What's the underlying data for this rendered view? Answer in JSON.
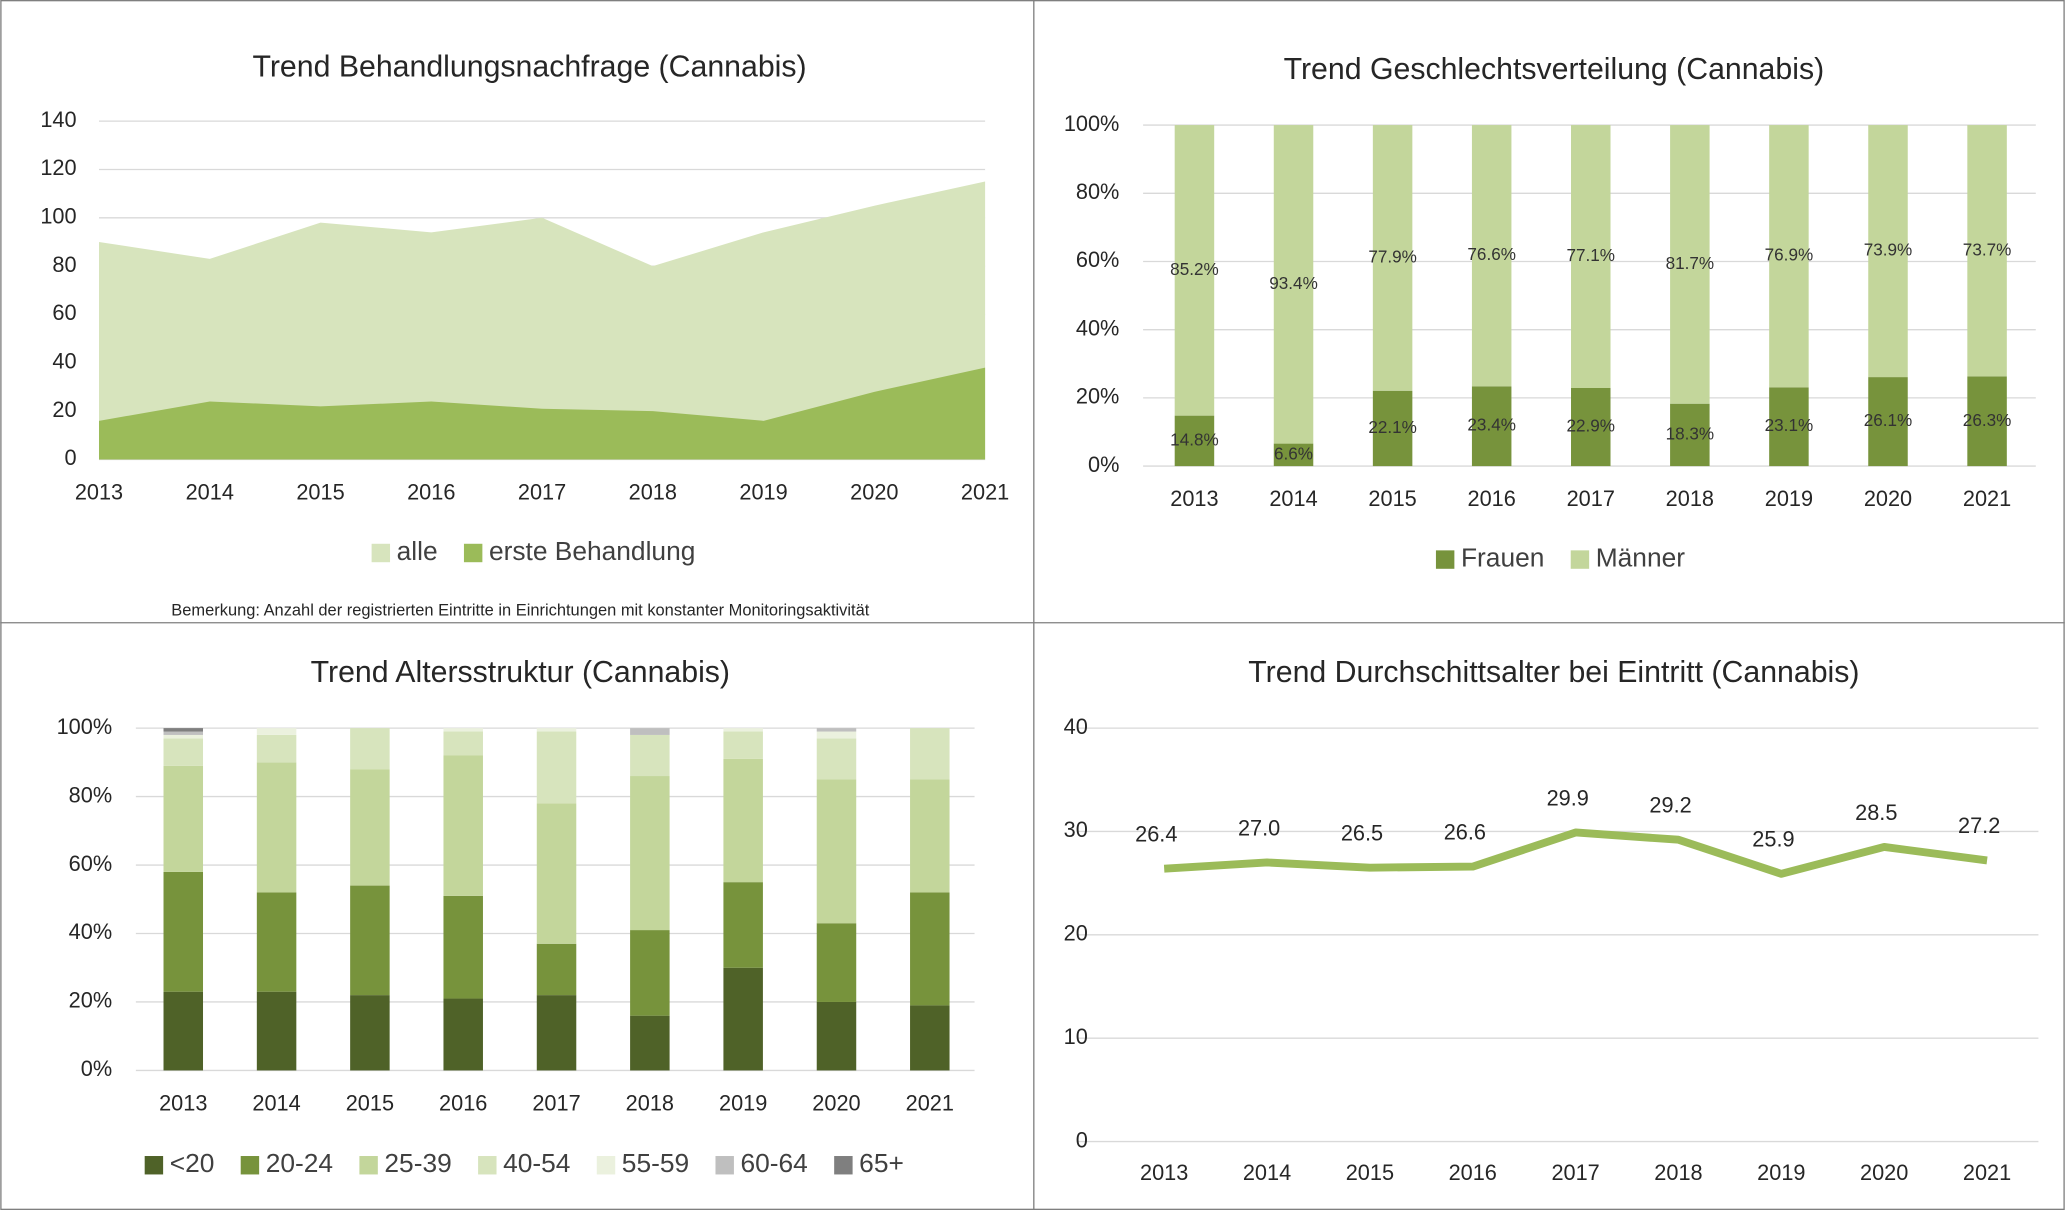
{
  "chart_data": [
    {
      "type": "area",
      "title": "Trend Behandlungsnachfrage (Cannabis)",
      "note": "Bemerkung: Anzahl der registrierten Eintritte in Einrichtungen mit konstanter Monitoringsaktivität",
      "categories": [
        "2013",
        "2014",
        "2015",
        "2016",
        "2017",
        "2018",
        "2019",
        "2020",
        "2021"
      ],
      "series": [
        {
          "name": "alle",
          "color": "#d7e4bd",
          "values": [
            90,
            83,
            98,
            94,
            100,
            80,
            94,
            105,
            115
          ]
        },
        {
          "name": "erste Behandlung",
          "color": "#9bbb59",
          "values": [
            16,
            24,
            22,
            24,
            21,
            20,
            16,
            28,
            38
          ]
        }
      ],
      "ylim": [
        0,
        140
      ],
      "yticks": [
        0,
        20,
        40,
        60,
        80,
        100,
        120,
        140
      ],
      "grid": true,
      "legend": "bottom"
    },
    {
      "type": "stacked_bar",
      "title": "Trend Geschlechtsverteilung (Cannabis)",
      "categories": [
        "2013",
        "2014",
        "2015",
        "2016",
        "2017",
        "2018",
        "2019",
        "2020",
        "2021"
      ],
      "series": [
        {
          "name": "Frauen",
          "color": "#77933c",
          "values": [
            14.8,
            6.6,
            22.1,
            23.4,
            22.9,
            18.3,
            23.1,
            26.1,
            26.3
          ],
          "value_labels": [
            "14.8%",
            "6.6%",
            "22.1%",
            "23.4%",
            "22.9%",
            "18.3%",
            "23.1%",
            "26.1%",
            "26.3%"
          ]
        },
        {
          "name": "Männer",
          "color": "#c3d69b",
          "values": [
            85.2,
            93.4,
            77.9,
            76.6,
            77.1,
            81.7,
            76.9,
            73.9,
            73.7
          ],
          "value_labels": [
            "85.2%",
            "93.4%",
            "77.9%",
            "76.6%",
            "77.1%",
            "81.7%",
            "76.9%",
            "73.9%",
            "73.7%"
          ]
        }
      ],
      "ylim": [
        0,
        100
      ],
      "yticks": [
        {
          "value": 0,
          "label": "0%"
        },
        {
          "value": 20,
          "label": "20%"
        },
        {
          "value": 40,
          "label": "40%"
        },
        {
          "value": 60,
          "label": "60%"
        },
        {
          "value": 80,
          "label": "80%"
        },
        {
          "value": 100,
          "label": "100%"
        }
      ],
      "grid": true,
      "legend": "bottom"
    },
    {
      "type": "stacked_bar",
      "title": "Trend Altersstruktur (Cannabis)",
      "categories": [
        "2013",
        "2014",
        "2015",
        "2016",
        "2017",
        "2018",
        "2019",
        "2020",
        "2021"
      ],
      "series": [
        {
          "name": "<20",
          "color": "#4f6228",
          "values": [
            23,
            23,
            22,
            21,
            22,
            16,
            30,
            20,
            19
          ]
        },
        {
          "name": "20-24",
          "color": "#77933c",
          "values": [
            35,
            29,
            32,
            30,
            15,
            25,
            25,
            23,
            33
          ]
        },
        {
          "name": "25-39",
          "color": "#c3d69b",
          "values": [
            31,
            38,
            34,
            41,
            41,
            45,
            36,
            42,
            33
          ]
        },
        {
          "name": "40-54",
          "color": "#d7e4bd",
          "values": [
            8,
            8,
            12,
            7,
            21,
            12,
            8,
            12,
            15
          ]
        },
        {
          "name": "55-59",
          "color": "#ebf1de",
          "values": [
            1,
            2,
            0,
            1,
            1,
            0,
            1,
            2,
            0
          ]
        },
        {
          "name": "60-64",
          "color": "#bfbfbf",
          "values": [
            1,
            0,
            0,
            0,
            0,
            2,
            0,
            1,
            0
          ]
        },
        {
          "name": "65+",
          "color": "#7f7f7f",
          "values": [
            1,
            0,
            0,
            0,
            0,
            0,
            0,
            0,
            0
          ]
        }
      ],
      "ylim": [
        0,
        100
      ],
      "yticks": [
        {
          "value": 0,
          "label": "0%"
        },
        {
          "value": 20,
          "label": "20%"
        },
        {
          "value": 40,
          "label": "40%"
        },
        {
          "value": 60,
          "label": "60%"
        },
        {
          "value": 80,
          "label": "80%"
        },
        {
          "value": 100,
          "label": "100%"
        }
      ],
      "grid": true,
      "legend": "bottom"
    },
    {
      "type": "line",
      "title": "Trend Durchschittsalter bei Eintritt (Cannabis)",
      "categories": [
        "2013",
        "2014",
        "2015",
        "2016",
        "2017",
        "2018",
        "2019",
        "2020",
        "2021"
      ],
      "values": [
        26.4,
        27.0,
        26.5,
        26.6,
        29.9,
        29.2,
        25.9,
        28.5,
        27.2
      ],
      "value_labels": [
        "26.4",
        "27.0",
        "26.5",
        "26.6",
        "29.9",
        "29.2",
        "25.9",
        "28.5",
        "27.2"
      ],
      "color": "#9bbb59",
      "ylim": [
        0,
        40
      ],
      "yticks": [
        0,
        10,
        20,
        30,
        40
      ],
      "grid": true
    }
  ]
}
